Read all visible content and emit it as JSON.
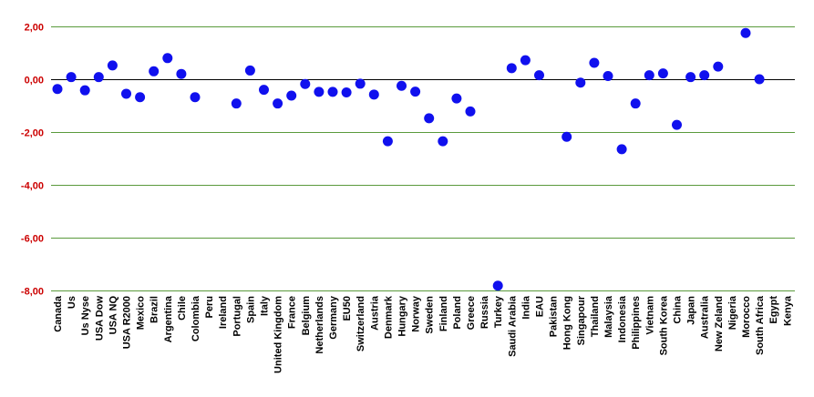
{
  "chart_data": {
    "type": "scatter",
    "title": "",
    "xlabel": "",
    "ylabel": "",
    "ylim": [
      -8,
      2
    ],
    "yticks": [
      2,
      0,
      -2,
      -4,
      -6,
      -8
    ],
    "ytick_labels": [
      "2,00",
      "0,00",
      "-2,00",
      "-4,00",
      "-6,00",
      "-8,00"
    ],
    "grid": true,
    "legend": "none",
    "colors": {
      "marker": "#1010ee",
      "grid": "#5a9a3c",
      "zero_line": "#000000",
      "ytick_text": "#cc0000",
      "xtick_text": "#000000"
    },
    "categories": [
      "Canada",
      "Us",
      "Us Nyse",
      "USA Dow",
      "USA NQ",
      "USA R2000",
      "Mexico",
      "Brazil",
      "Argentina",
      "Chile",
      "Colombia",
      "Peru",
      "Ireland",
      "Portugal",
      "Spain",
      "Italy",
      "United Kingdom",
      "France",
      "Belgium",
      "Netherlands",
      "Germany",
      "EU50",
      "Switzerland",
      "Austria",
      "Denmark",
      "Hungary",
      "Norway",
      "Sweden",
      "Finland",
      "Poland",
      "Greece",
      "Russia",
      "Turkey",
      "Saudi Arabia",
      "India",
      "EAU",
      "Pakistan",
      "Hong Kong",
      "Singapour",
      "Thailand",
      "Malaysia",
      "Indonesia",
      "Philippines",
      "Vietnam",
      "South Korea",
      "China",
      "Japan",
      "Australia",
      "New Zeland",
      "Nigeria",
      "Morocco",
      "South Africa",
      "Egypt",
      "Kenya"
    ],
    "values": [
      -0.37,
      0.08,
      -0.42,
      0.08,
      0.52,
      -0.55,
      -0.68,
      0.3,
      0.8,
      0.2,
      -0.68,
      null,
      null,
      -0.92,
      0.33,
      -0.4,
      -0.92,
      -0.62,
      -0.18,
      -0.48,
      -0.48,
      -0.5,
      -0.17,
      -0.58,
      -2.35,
      -0.25,
      -0.47,
      -1.48,
      -2.35,
      -0.73,
      -1.22,
      null,
      -7.82,
      0.42,
      0.72,
      0.15,
      null,
      -2.18,
      -0.13,
      0.62,
      0.12,
      -2.65,
      -0.92,
      0.15,
      0.22,
      -1.73,
      0.08,
      0.15,
      0.48,
      null,
      1.75,
      0.0,
      null,
      null
    ]
  }
}
